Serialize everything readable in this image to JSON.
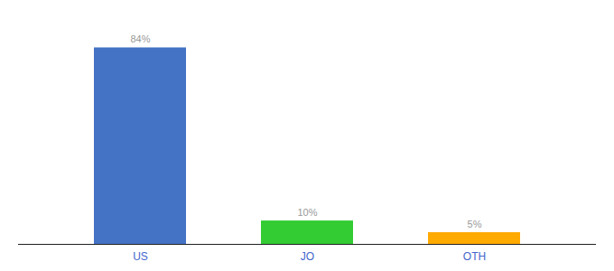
{
  "chart_data": {
    "type": "bar",
    "categories": [
      "US",
      "JO",
      "OTH"
    ],
    "values": [
      84,
      10,
      5
    ],
    "value_labels": [
      "84%",
      "10%",
      "5%"
    ],
    "colors": [
      "#4472c4",
      "#33cc33",
      "#ffaa00"
    ],
    "ylim": [
      0,
      95
    ],
    "data_labels": true,
    "tick_labels": "x"
  }
}
